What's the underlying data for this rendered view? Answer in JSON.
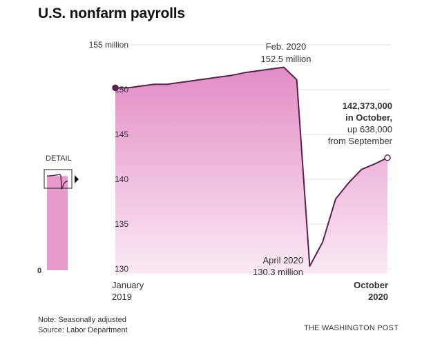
{
  "title": "U.S. nonfarm payrolls",
  "colors": {
    "fill_top": "#e38cc6",
    "fill_bottom": "#fbe9f4",
    "line": "#5b1f4d",
    "grid": "#e2e2e2",
    "detail_fill": "#e79bcd"
  },
  "chart_data": {
    "type": "area",
    "unit": "million",
    "ylim": [
      130,
      155
    ],
    "yticks": [
      130,
      135,
      140,
      145,
      150,
      155
    ],
    "ytick_labels": [
      "130",
      "135",
      "140",
      "145",
      "150",
      "155 million"
    ],
    "x_labels": {
      "start": [
        "January",
        "2019"
      ],
      "end": [
        "October",
        "2020"
      ]
    },
    "x": [
      "2019-01",
      "2019-02",
      "2019-03",
      "2019-04",
      "2019-05",
      "2019-06",
      "2019-07",
      "2019-08",
      "2019-09",
      "2019-10",
      "2019-11",
      "2019-12",
      "2020-01",
      "2020-02",
      "2020-03",
      "2020-04",
      "2020-05",
      "2020-06",
      "2020-07",
      "2020-08",
      "2020-09",
      "2020-10"
    ],
    "values": [
      150.2,
      150.2,
      150.4,
      150.6,
      150.6,
      150.8,
      151.0,
      151.2,
      151.4,
      151.6,
      151.9,
      152.1,
      152.3,
      152.5,
      151.1,
      130.3,
      133.0,
      137.8,
      139.6,
      141.1,
      141.7,
      142.4
    ],
    "annotations": {
      "peak": [
        "Feb. 2020",
        "152.5 million"
      ],
      "trough": [
        "April 2020",
        "130.3 million"
      ],
      "latest_bold": [
        "142,373,000",
        "in October,"
      ],
      "latest": [
        "up 638,000",
        "from September"
      ]
    },
    "detail": {
      "label": "DETAIL",
      "zero_label": "0"
    }
  },
  "footer": {
    "note": "Note: Seasonally adjusted",
    "source": "Source: Labor Department",
    "credit": "THE WASHINGTON POST"
  }
}
